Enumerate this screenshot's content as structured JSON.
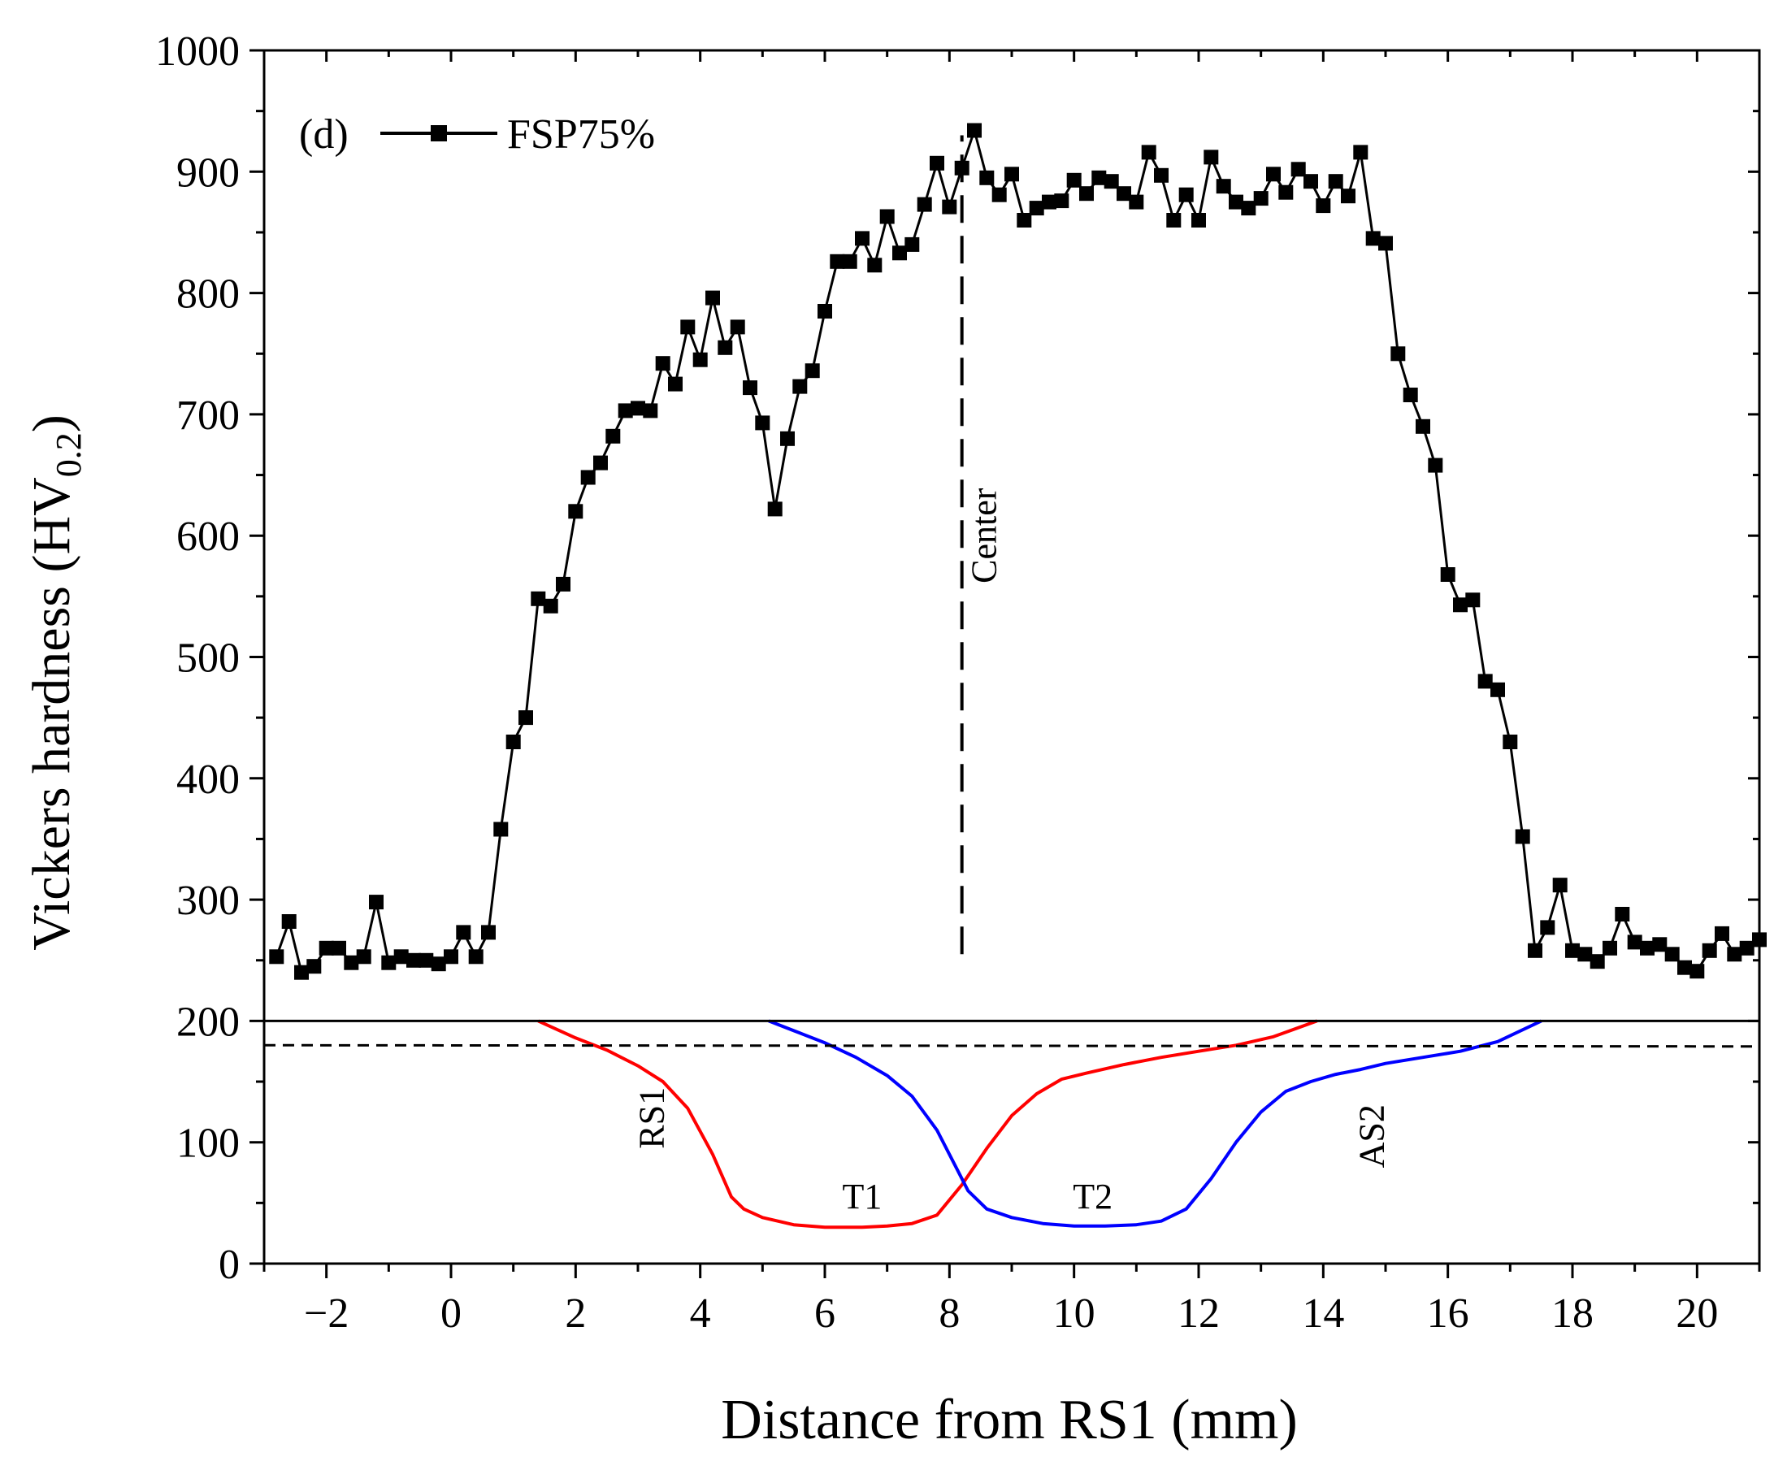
{
  "chart_data": {
    "type": "line",
    "panel_label": "(d)",
    "xlabel": "Distance from RS1 (mm)",
    "ylabel_main": "Vickers hardness (HV",
    "ylabel_sub": "0.2",
    "ylabel_close": ")",
    "xlim": [
      -3,
      21
    ],
    "ylim": [
      0,
      1000
    ],
    "x_ticks": [
      -2,
      0,
      2,
      4,
      6,
      8,
      10,
      12,
      14,
      16,
      18,
      20
    ],
    "x_tick_labels": [
      "−2",
      "0",
      "2",
      "4",
      "6",
      "8",
      "10",
      "12",
      "14",
      "16",
      "18",
      "20"
    ],
    "y_ticks": [
      0,
      100,
      200,
      300,
      400,
      500,
      600,
      700,
      800,
      900,
      1000
    ],
    "y_tick_labels": [
      "0",
      "100",
      "200",
      "300",
      "400",
      "500",
      "600",
      "700",
      "800",
      "900",
      "1000"
    ],
    "grid": false,
    "legend_position": "top-left",
    "series": [
      {
        "name": "FSP75%",
        "color": "#000000",
        "marker": "square",
        "x": [
          -2.8,
          -2.6,
          -2.4,
          -2.2,
          -2.0,
          -1.8,
          -1.6,
          -1.4,
          -1.2,
          -1.0,
          -0.8,
          -0.6,
          -0.4,
          -0.2,
          0.0,
          0.2,
          0.4,
          0.6,
          0.8,
          1.0,
          1.2,
          1.4,
          1.6,
          1.8,
          2.0,
          2.2,
          2.4,
          2.6,
          2.8,
          3.0,
          3.2,
          3.4,
          3.6,
          3.8,
          4.0,
          4.2,
          4.4,
          4.6,
          4.8,
          5.0,
          5.2,
          5.4,
          5.6,
          5.8,
          6.0,
          6.2,
          6.4,
          6.6,
          6.8,
          7.0,
          7.2,
          7.4,
          7.6,
          7.8,
          8.0,
          8.2,
          8.4,
          8.6,
          8.8,
          9.0,
          9.2,
          9.4,
          9.6,
          9.8,
          10.0,
          10.2,
          10.4,
          10.6,
          10.8,
          11.0,
          11.2,
          11.4,
          11.6,
          11.8,
          12.0,
          12.2,
          12.4,
          12.6,
          12.8,
          13.0,
          13.2,
          13.4,
          13.6,
          13.8,
          14.0,
          14.2,
          14.4,
          14.6,
          14.8,
          15.0,
          15.2,
          15.4,
          15.6,
          15.8,
          16.0,
          16.2,
          16.4,
          16.6,
          16.8,
          17.0,
          17.2,
          17.4,
          17.6,
          17.8,
          18.0,
          18.2,
          18.4,
          18.6,
          18.8,
          19.0,
          19.2,
          19.4,
          19.6,
          19.8,
          20.0,
          20.2,
          20.4,
          20.6,
          20.8,
          21.0
        ],
        "y": [
          253,
          282,
          240,
          245,
          260,
          260,
          248,
          253,
          298,
          248,
          253,
          250,
          250,
          247,
          253,
          273,
          253,
          273,
          358,
          430,
          450,
          548,
          542,
          560,
          620,
          648,
          660,
          682,
          703,
          705,
          703,
          742,
          725,
          772,
          745,
          796,
          755,
          772,
          722,
          693,
          622,
          680,
          723,
          736,
          785,
          826,
          826,
          845,
          823,
          863,
          833,
          840,
          873,
          907,
          871,
          903,
          934,
          895,
          881,
          898,
          860,
          870,
          875,
          876,
          893,
          882,
          895,
          892,
          882,
          875,
          916,
          897,
          860,
          881,
          860,
          912,
          888,
          875,
          870,
          878,
          898,
          883,
          902,
          892,
          872,
          892,
          880,
          916,
          845,
          841,
          750,
          716,
          690,
          658,
          568,
          543,
          547,
          480,
          473,
          430,
          352,
          258,
          277,
          312,
          258,
          255,
          249,
          260,
          288,
          265,
          260,
          263,
          255,
          244,
          241,
          258,
          272,
          255,
          260,
          267
        ]
      },
      {
        "name": "T1",
        "color": "#ff0000",
        "x": [
          1.4,
          2.0,
          2.5,
          3.0,
          3.4,
          3.8,
          4.2,
          4.5,
          4.7,
          5.0,
          5.5,
          6.0,
          6.6,
          7.0,
          7.4,
          7.8,
          8.2,
          8.6,
          9.0,
          9.4,
          9.8,
          10.2,
          10.8,
          11.4,
          12.0,
          12.6,
          13.2,
          13.9
        ],
        "y": [
          200,
          186,
          176,
          163,
          150,
          128,
          90,
          55,
          45,
          38,
          32,
          30,
          30,
          31,
          33,
          40,
          65,
          95,
          122,
          140,
          152,
          157,
          164,
          170,
          175,
          180,
          187,
          200
        ]
      },
      {
        "name": "T2",
        "color": "#0000ff",
        "x": [
          5.1,
          5.6,
          6.0,
          6.5,
          7.0,
          7.4,
          7.8,
          8.1,
          8.3,
          8.6,
          9.0,
          9.5,
          10.0,
          10.5,
          11.0,
          11.4,
          11.8,
          12.2,
          12.6,
          13.0,
          13.4,
          13.8,
          14.2,
          14.6,
          15.0,
          15.6,
          16.2,
          16.8,
          17.5
        ],
        "y": [
          200,
          190,
          182,
          170,
          155,
          138,
          110,
          80,
          60,
          45,
          38,
          33,
          31,
          31,
          32,
          35,
          45,
          70,
          100,
          125,
          142,
          150,
          156,
          160,
          165,
          170,
          175,
          183,
          200
        ]
      }
    ],
    "horizontal_line_solid": 200,
    "horizontal_line_dashed": [
      180,
      179
    ],
    "annotations": {
      "center_label": "Center",
      "center_x": 8.2,
      "center_line_y": [
        255,
        930
      ],
      "rs1_label": "RS1",
      "rs1_x": 2.6,
      "rs1_y": 120,
      "t1_label": "T1",
      "t1_x": 6.6,
      "t1_y": 55,
      "t2_label": "T2",
      "t2_x": 10.3,
      "t2_y": 55,
      "as2_label": "AS2",
      "as2_x": 14.6,
      "as2_y": 105
    }
  }
}
